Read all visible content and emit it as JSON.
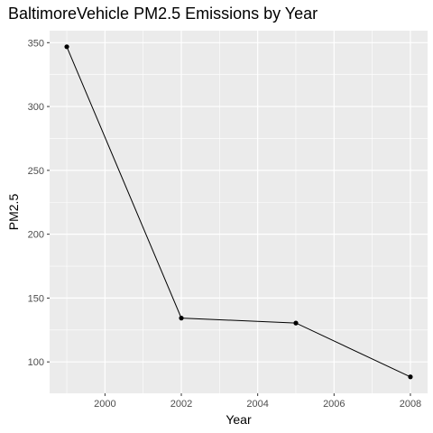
{
  "chart_data": {
    "type": "line",
    "title": "BaltimoreVehicle PM2.5 Emissions by Year",
    "xlabel": "Year",
    "ylabel": "PM2.5",
    "x": [
      1999,
      2002,
      2005,
      2008
    ],
    "values": [
      346.82,
      134.31,
      130.43,
      88.28
    ],
    "xlim": [
      1998.55,
      2008.45
    ],
    "ylim": [
      75.4,
      359.4
    ],
    "xticks": [
      2000,
      2002,
      2004,
      2006,
      2008
    ],
    "yticks": [
      100,
      150,
      200,
      250,
      300,
      350
    ],
    "grid": true,
    "legend": "none",
    "colors": {
      "panel": "#ebebeb",
      "grid": "#ffffff",
      "line": "#000000",
      "point": "#000000"
    }
  }
}
